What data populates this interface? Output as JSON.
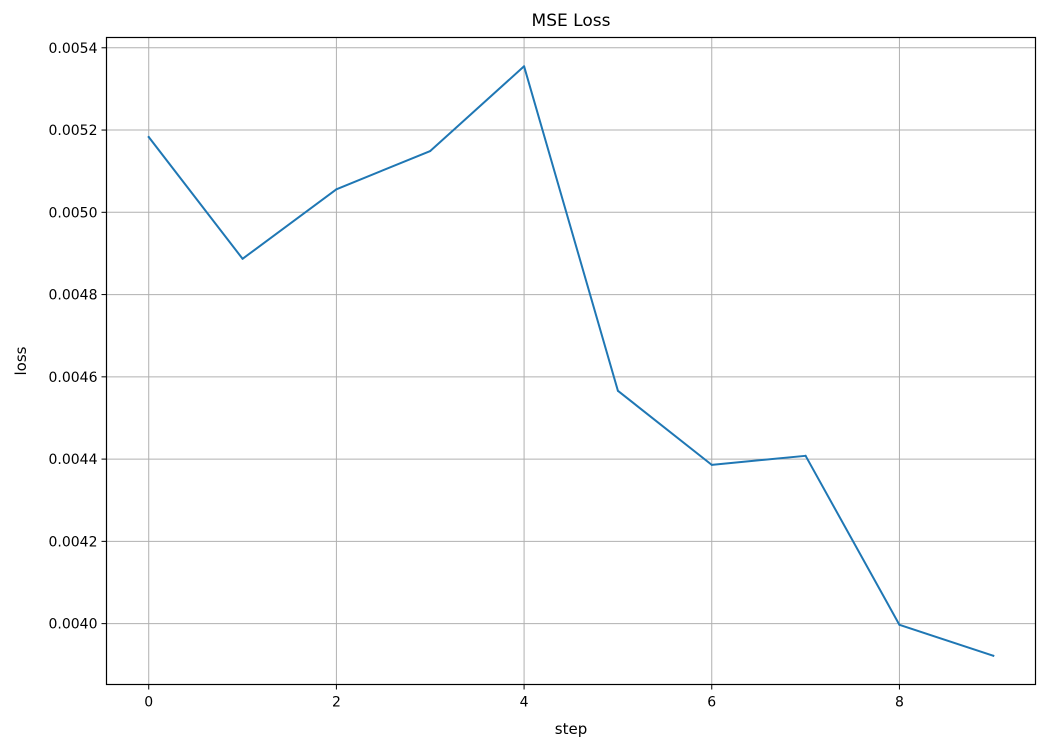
{
  "chart_data": {
    "type": "line",
    "title": "MSE Loss",
    "xlabel": "step",
    "ylabel": "loss",
    "xlim": [
      -0.45,
      9.45
    ],
    "ylim": [
      0.003852,
      0.005425
    ],
    "xticks": [
      0,
      2,
      4,
      6,
      8
    ],
    "xtick_labels": [
      "0",
      "2",
      "4",
      "6",
      "8"
    ],
    "yticks": [
      0.004,
      0.0042,
      0.0044,
      0.0046,
      0.0048,
      0.005,
      0.0052,
      0.0054
    ],
    "ytick_labels": [
      "0.0040",
      "0.0042",
      "0.0044",
      "0.0046",
      "0.0048",
      "0.0050",
      "0.0052",
      "0.0054"
    ],
    "grid": true,
    "series": [
      {
        "x": [
          0,
          1,
          2,
          3,
          4,
          5,
          6,
          7,
          8,
          9
        ],
        "y": [
          0.005183,
          0.004887,
          0.005056,
          0.005149,
          0.005355,
          0.004566,
          0.004386,
          0.004408,
          0.003997,
          0.003922
        ],
        "color": "#1f77b4"
      }
    ]
  }
}
